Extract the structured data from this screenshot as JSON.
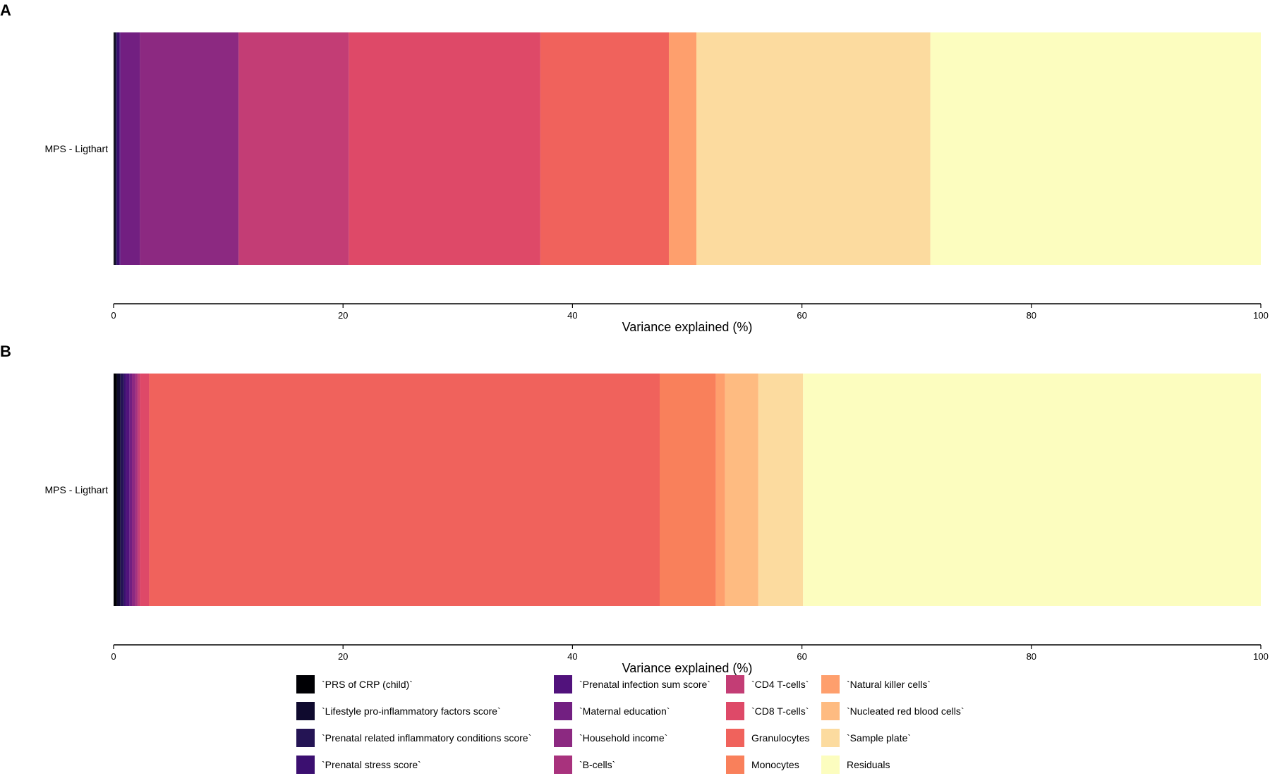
{
  "chart_data": {
    "type": "bar",
    "orientation": "horizontal-stacked",
    "xlabel": "Variance explained (%)",
    "xlim": [
      0,
      100
    ],
    "xticks": [
      0,
      20,
      40,
      60,
      80,
      100
    ],
    "grid": false,
    "legend_position": "bottom",
    "legend": [
      {
        "label": "`PRS of CRP (child)`",
        "color": "#000004"
      },
      {
        "label": "`Lifestyle pro-inflammatory factors score`",
        "color": "#0f0a2e"
      },
      {
        "label": "`Prenatal related inflammatory conditions score`",
        "color": "#241454"
      },
      {
        "label": "`Prenatal stress score`",
        "color": "#3b0f70"
      },
      {
        "label": "`Prenatal infection sum score`",
        "color": "#51127c"
      },
      {
        "label": "`Maternal education`",
        "color": "#721f81"
      },
      {
        "label": "`Household income`",
        "color": "#8c2981"
      },
      {
        "label": "`B-cells`",
        "color": "#a8327d"
      },
      {
        "label": "`CD4 T-cells`",
        "color": "#c33d75"
      },
      {
        "label": "`CD8 T-cells`",
        "color": "#de4968"
      },
      {
        "label": "Granulocytes",
        "color": "#f0625c"
      },
      {
        "label": "Monocytes",
        "color": "#f9805b"
      },
      {
        "label": "`Natural killer cells`",
        "color": "#fe9f6d"
      },
      {
        "label": "`Nucleated red blood cells`",
        "color": "#febb81"
      },
      {
        "label": "`Sample plate`",
        "color": "#fcdb9f"
      },
      {
        "label": "Residuals",
        "color": "#fcfdbf"
      }
    ],
    "panels": [
      {
        "label": "A",
        "category": "MPS - Ligthart",
        "values": [
          0.1,
          0.1,
          0.1,
          0.2,
          0.1,
          1.7,
          8.6,
          0.0,
          9.6,
          16.7,
          11.2,
          0.0,
          2.4,
          0.0,
          20.4,
          28.8
        ]
      },
      {
        "label": "B",
        "category": "MPS - Ligthart",
        "values": [
          0.3,
          0.3,
          0.3,
          0.2,
          0.3,
          0.2,
          0.3,
          0.2,
          0.2,
          0.8,
          44.5,
          4.9,
          0.8,
          2.9,
          3.9,
          39.9
        ]
      }
    ]
  }
}
